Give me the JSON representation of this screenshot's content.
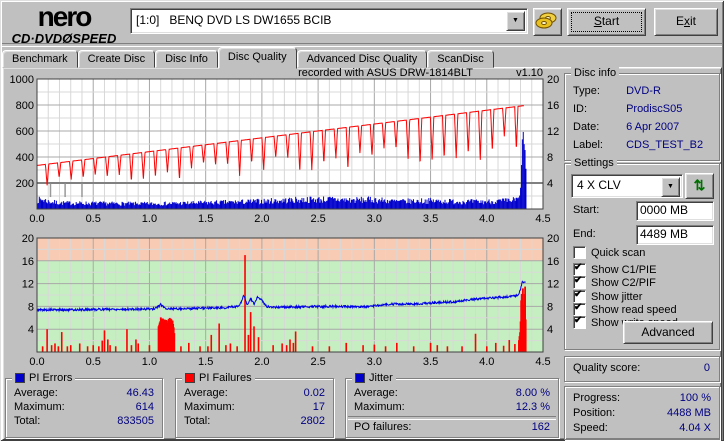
{
  "window": {
    "logo_line1": "nero",
    "logo_line2": "CD·DVDØSPEED"
  },
  "toolbar": {
    "drive_selector_value": "[1:0]   BENQ DVD LS DW1655 BCIB",
    "start_label": "Start",
    "start_underline": 0,
    "exit_label": "Exit",
    "exit_underline": 1
  },
  "tabs": {
    "items": [
      {
        "label": "Benchmark",
        "active": false
      },
      {
        "label": "Create Disc",
        "active": false
      },
      {
        "label": "Disc Info",
        "active": false
      },
      {
        "label": "Disc Quality",
        "active": true
      },
      {
        "label": "Advanced Disc Quality",
        "active": false
      },
      {
        "label": "ScanDisc",
        "active": false
      }
    ]
  },
  "disc_info": {
    "title": "Disc info",
    "rows": [
      {
        "label": "Type:",
        "value": "DVD-R"
      },
      {
        "label": "ID:",
        "value": "ProdiscS05"
      },
      {
        "label": "Date:",
        "value": "6 Apr 2007"
      },
      {
        "label": "Label:",
        "value": "CDS_TEST_B2"
      }
    ]
  },
  "settings": {
    "title": "Settings",
    "speed_value": "4 X CLV",
    "start_label": "Start:",
    "start_value": "0000 MB",
    "end_label": "End:",
    "end_value": "4489 MB",
    "checkboxes": [
      {
        "label": "Quick scan",
        "checked": false
      },
      {
        "label": "Show C1/PIE",
        "checked": true
      },
      {
        "label": "Show C2/PIF",
        "checked": true
      },
      {
        "label": "Show jitter",
        "checked": true
      },
      {
        "label": "Show read speed",
        "checked": true
      },
      {
        "label": "Show write speed",
        "checked": true
      }
    ],
    "advanced_label": "Advanced"
  },
  "quality": {
    "label": "Quality score:",
    "value": "0"
  },
  "progress": {
    "rows": [
      {
        "label": "Progress:",
        "value": "100 %"
      },
      {
        "label": "Position:",
        "value": "4488 MB"
      },
      {
        "label": "Speed:",
        "value": "4.04 X"
      }
    ]
  },
  "stats_panels": {
    "pi_errors": {
      "title": "PI Errors",
      "swatch": "#0000cc",
      "rows": [
        {
          "label": "Average:",
          "value": "46.43"
        },
        {
          "label": "Maximum:",
          "value": "614"
        },
        {
          "label": "Total:",
          "value": "833505"
        }
      ]
    },
    "pi_failures": {
      "title": "PI Failures",
      "swatch": "#ff0000",
      "rows": [
        {
          "label": "Average:",
          "value": "0.02"
        },
        {
          "label": "Maximum:",
          "value": "17"
        },
        {
          "label": "Total:",
          "value": "2802"
        }
      ]
    },
    "jitter": {
      "title": "Jitter",
      "swatch": "#0000cc",
      "rows": [
        {
          "label": "Average:",
          "value": "8.00 %"
        },
        {
          "label": "Maximum:",
          "value": "12.3 %"
        }
      ],
      "po_label": "PO failures:",
      "po_value": "162"
    }
  },
  "colors": {
    "navy": "#000080",
    "red": "#ff0000",
    "bar_blue": "#0000cc",
    "jitter_blue": "#0000e8",
    "zone_green": "#c6efc1",
    "zone_pink": "#f8ccb4",
    "grid_minor": "#d8d8d8",
    "grid_major": "#a8a8a8",
    "threshold": "#808080",
    "plot_border": "#404040"
  },
  "chart_data": [
    {
      "type": "line",
      "header_recorded": "recorded with  ASUS     DRW-1814BLT",
      "header_version": "v1.10",
      "xlim": [
        0,
        4.5
      ],
      "xticks": [
        0,
        0.5,
        1,
        1.5,
        2,
        2.5,
        3,
        3.5,
        4,
        4.5
      ],
      "ylim_left": [
        0,
        1000
      ],
      "yticks_left": [
        200,
        400,
        600,
        800,
        1000
      ],
      "ylim_right": [
        0,
        20
      ],
      "yticks_right": [
        4,
        8,
        12,
        16,
        20
      ],
      "threshold_left": 200,
      "pie_bars": {
        "name": "PI Errors",
        "color": "#0000cc",
        "x_end": 4.345,
        "seed": 7,
        "envelope": [
          [
            0,
            85
          ],
          [
            0.05,
            90
          ],
          [
            0.1,
            70
          ],
          [
            0.2,
            58
          ],
          [
            0.4,
            55
          ],
          [
            0.7,
            52
          ],
          [
            1,
            50
          ],
          [
            1.3,
            55
          ],
          [
            1.6,
            62
          ],
          [
            1.9,
            70
          ],
          [
            2.1,
            78
          ],
          [
            2.35,
            88
          ],
          [
            2.6,
            92
          ],
          [
            2.8,
            85
          ],
          [
            3,
            88
          ],
          [
            3.2,
            72
          ],
          [
            3.45,
            78
          ],
          [
            3.7,
            72
          ],
          [
            3.95,
            68
          ],
          [
            4.1,
            75
          ],
          [
            4.2,
            78
          ],
          [
            4.28,
            95
          ],
          [
            4.295,
            140
          ],
          [
            4.305,
            420
          ],
          [
            4.315,
            610
          ],
          [
            4.325,
            590
          ],
          [
            4.335,
            520
          ],
          [
            4.345,
            300
          ]
        ],
        "stats": {
          "average": 46.43,
          "maximum": 614,
          "total": 833505
        }
      },
      "write_curve": {
        "name": "Write speed",
        "color": "#ff0000",
        "y_start": 335,
        "y_end": 795,
        "x_end": 4.33,
        "dip_interval": 0.107,
        "dip_phase": 0.09,
        "dip_width": 0.015,
        "dip_depth_min": 0.28,
        "dip_depth_max": 0.52
      },
      "speed_marks": {
        "color": "#999999",
        "x": [
          0.12,
          0.25,
          0.4
        ],
        "y_top": 195,
        "y_bottom": 92
      }
    },
    {
      "type": "line",
      "xlim": [
        0,
        4.5
      ],
      "xticks": [
        0,
        0.5,
        1,
        1.5,
        2,
        2.5,
        3,
        3.5,
        4,
        4.5
      ],
      "ylim": [
        0,
        20
      ],
      "yticks": [
        4,
        8,
        12,
        16,
        20
      ],
      "zones": [
        {
          "from": 0,
          "to": 16,
          "color": "#c6efc1"
        },
        {
          "from": 16,
          "to": 20,
          "color": "#f8ccb4"
        }
      ],
      "pif_bars": {
        "name": "PI Failures",
        "color": "#ff0000",
        "seed": 11,
        "bars": [
          [
            0.05,
            1
          ],
          [
            0.09,
            4
          ],
          [
            0.13,
            1.2
          ],
          [
            0.16,
            1.5
          ],
          [
            0.19,
            1
          ],
          [
            0.22,
            3.5
          ],
          [
            0.27,
            1
          ],
          [
            0.3,
            1.2
          ],
          [
            0.38,
            1.5
          ],
          [
            0.45,
            1
          ],
          [
            0.5,
            1.2
          ],
          [
            0.55,
            1
          ],
          [
            0.58,
            2
          ],
          [
            0.6,
            3.8
          ],
          [
            0.63,
            2.2
          ],
          [
            0.65,
            1.2
          ],
          [
            0.7,
            1
          ],
          [
            0.8,
            4
          ],
          [
            0.84,
            1.2
          ],
          [
            0.88,
            2.2
          ],
          [
            0.9,
            1.5
          ],
          [
            1.0,
            1.2
          ],
          [
            1.28,
            1
          ],
          [
            1.35,
            1.6
          ],
          [
            1.45,
            1
          ],
          [
            1.52,
            1
          ],
          [
            1.55,
            3
          ],
          [
            1.62,
            5
          ],
          [
            1.68,
            1.2
          ],
          [
            1.72,
            1.5
          ],
          [
            1.78,
            1
          ],
          [
            1.85,
            17
          ],
          [
            1.88,
            3
          ],
          [
            1.9,
            7
          ],
          [
            1.93,
            4.5
          ],
          [
            1.97,
            2.6
          ],
          [
            2.1,
            1.2
          ],
          [
            2.18,
            1.5
          ],
          [
            2.22,
            1.2
          ],
          [
            2.25,
            2.2
          ],
          [
            2.28,
            1.6
          ],
          [
            2.3,
            3.6
          ],
          [
            2.45,
            1
          ],
          [
            2.6,
            1
          ],
          [
            2.75,
            1.6
          ],
          [
            2.9,
            1.2
          ],
          [
            3.0,
            1.3
          ],
          [
            3.1,
            1
          ],
          [
            3.2,
            1.6
          ],
          [
            3.35,
            1
          ],
          [
            3.5,
            1.6
          ],
          [
            3.56,
            1.2
          ],
          [
            3.65,
            1
          ],
          [
            3.78,
            1
          ],
          [
            3.9,
            3.2
          ],
          [
            4.0,
            1
          ],
          [
            4.08,
            1.6
          ],
          [
            4.15,
            1.1
          ],
          [
            4.2,
            2.1
          ],
          [
            4.25,
            1.4
          ]
        ],
        "clusters": [
          {
            "anchors": [
              [
                1.08,
                4.5
              ],
              [
                1.11,
                6
              ],
              [
                1.14,
                5
              ],
              [
                1.17,
                6
              ],
              [
                1.2,
                5.5
              ],
              [
                1.22,
                3.5
              ]
            ]
          },
          {
            "anchors": [
              [
                4.285,
                2
              ],
              [
                4.3,
                5
              ],
              [
                4.312,
                12
              ],
              [
                4.322,
                10
              ],
              [
                4.33,
                6.5
              ],
              [
                4.338,
                12
              ],
              [
                4.348,
                4
              ]
            ]
          }
        ],
        "stats": {
          "average": 0.02,
          "maximum": 17,
          "total": 2802
        }
      },
      "jitter_line": {
        "name": "Jitter",
        "color": "#0000e8",
        "noise": 0.4,
        "seed": 5,
        "anchors": [
          [
            0,
            7.4
          ],
          [
            0.3,
            7.4
          ],
          [
            0.6,
            7.5
          ],
          [
            0.9,
            7.5
          ],
          [
            1.05,
            7.6
          ],
          [
            1.1,
            8.3
          ],
          [
            1.15,
            7.6
          ],
          [
            1.3,
            7.6
          ],
          [
            1.5,
            7.7
          ],
          [
            1.7,
            7.8
          ],
          [
            1.8,
            8.1
          ],
          [
            1.84,
            9.9
          ],
          [
            1.87,
            8.2
          ],
          [
            1.9,
            9.4
          ],
          [
            1.93,
            8.4
          ],
          [
            1.96,
            9.6
          ],
          [
            2.0,
            9.0
          ],
          [
            2.04,
            8.0
          ],
          [
            2.1,
            7.9
          ],
          [
            2.3,
            7.9
          ],
          [
            2.5,
            8.0
          ],
          [
            2.7,
            8.0
          ],
          [
            2.9,
            7.9
          ],
          [
            3.0,
            8.1
          ],
          [
            3.1,
            8.4
          ],
          [
            3.3,
            8.4
          ],
          [
            3.5,
            8.6
          ],
          [
            3.7,
            8.8
          ],
          [
            3.9,
            9.3
          ],
          [
            4.05,
            9.5
          ],
          [
            4.2,
            9.7
          ],
          [
            4.28,
            9.9
          ],
          [
            4.3,
            11.0
          ],
          [
            4.315,
            12.4
          ],
          [
            4.33,
            12.1
          ],
          [
            4.345,
            12.2
          ]
        ],
        "stats": {
          "average_pct": 8.0,
          "maximum_pct": 12.3,
          "po_failures": 162
        }
      }
    }
  ]
}
